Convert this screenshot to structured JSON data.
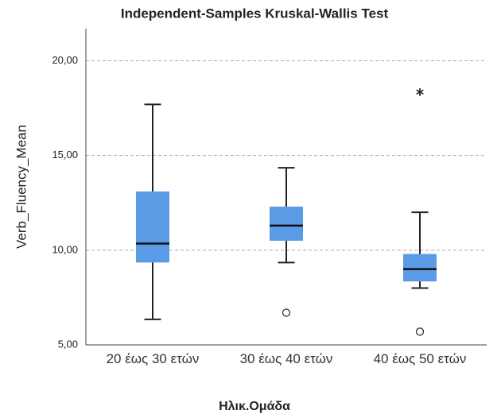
{
  "chart_data": {
    "type": "boxplot",
    "title": "Independent-Samples Kruskal-Wallis Test",
    "x_label": "Ηλικ.Ομάδα",
    "y_label": "Verb_Fluency_Mean",
    "categories": [
      "20 έως 30 ετών",
      "30 έως 40 ετών",
      "40 έως 50 ετών"
    ],
    "color": "#5a9be6",
    "boxes": [
      {
        "whisker_low": 6.35,
        "q1": 9.35,
        "median": 10.35,
        "q3": 13.1,
        "whisker_high": 17.7,
        "outliers": [],
        "extremes": []
      },
      {
        "whisker_low": 9.35,
        "q1": 10.5,
        "median": 11.3,
        "q3": 12.3,
        "whisker_high": 14.35,
        "outliers": [
          6.7
        ],
        "extremes": []
      },
      {
        "whisker_low": 8.0,
        "q1": 8.35,
        "median": 9.0,
        "q3": 9.8,
        "whisker_high": 12.0,
        "outliers": [
          5.7
        ],
        "extremes": [
          18.35
        ]
      }
    ],
    "ylim": [
      5,
      21.7
    ],
    "yticks": [
      {
        "value": 5,
        "label": "5,00"
      },
      {
        "value": 10,
        "label": "10,00"
      },
      {
        "value": 15,
        "label": "15,00"
      },
      {
        "value": 20,
        "label": "20,00"
      }
    ],
    "grid": true
  }
}
